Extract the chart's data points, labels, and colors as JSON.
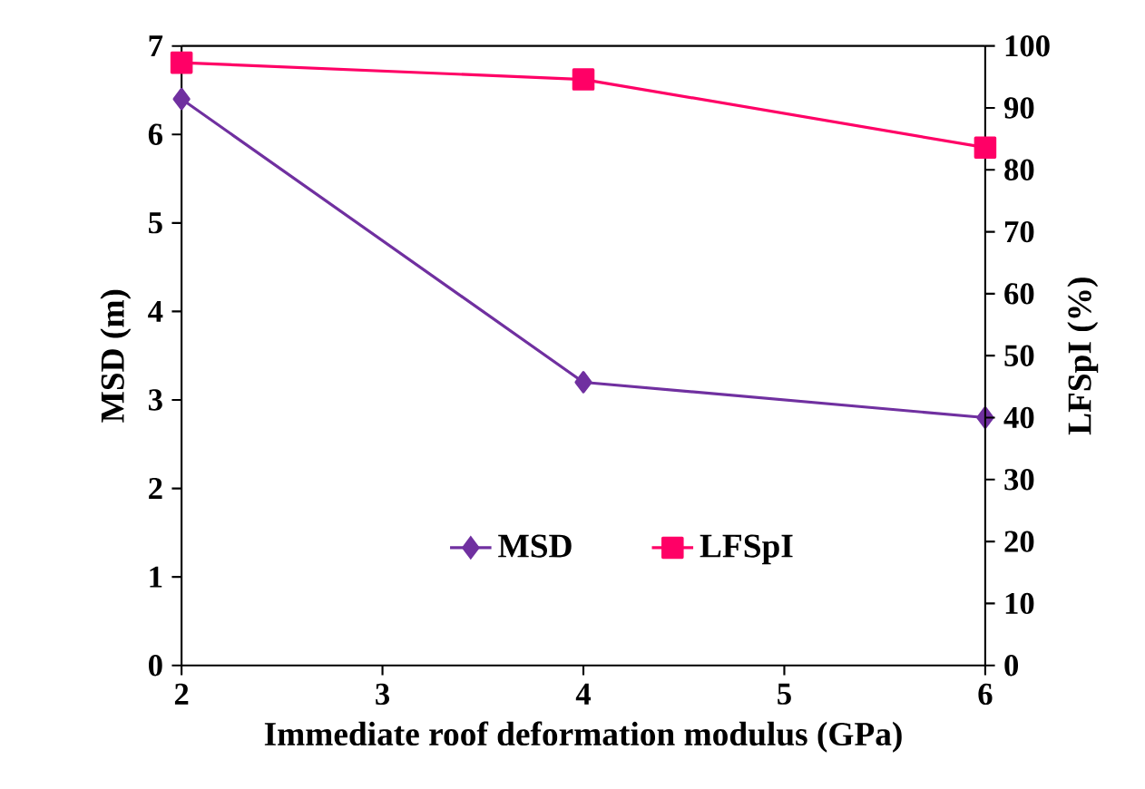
{
  "chart_data": {
    "type": "line",
    "xlabel": "Immediate roof deformation modulus (GPa)",
    "ylabel": "MSD (m)",
    "y2label": "LFSpI (%)",
    "x": [
      2,
      4,
      6
    ],
    "xlim": [
      2,
      6
    ],
    "xticks": [
      2,
      3,
      4,
      5,
      6
    ],
    "ylim": [
      0,
      7
    ],
    "yticks": [
      0,
      1,
      2,
      3,
      4,
      5,
      6,
      7
    ],
    "y2lim": [
      0,
      100
    ],
    "y2ticks": [
      0,
      10,
      20,
      30,
      40,
      50,
      60,
      70,
      80,
      90,
      100
    ],
    "legend": "bottom",
    "grid": false,
    "series": [
      {
        "name": "MSD",
        "color": "#7030a0",
        "marker": "diamond",
        "values": [
          6.4,
          3.2,
          2.8
        ]
      },
      {
        "name": "LFSpI",
        "color": "#ff0066",
        "marker": "square",
        "axis": "y2",
        "values": [
          97.3,
          94.6,
          83.6
        ]
      }
    ]
  }
}
